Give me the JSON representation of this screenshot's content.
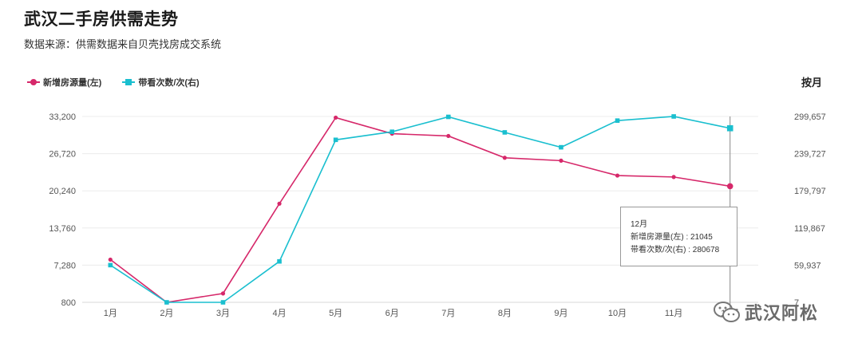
{
  "header": {
    "title": "武汉二手房供需走势",
    "subtitle": "数据来源：供需数据来自贝壳找房成交系统"
  },
  "period_label": "按月",
  "colors": {
    "series1": "#d6286a",
    "series2": "#1abfcf",
    "grid": "#ececec",
    "crosshair": "#888888"
  },
  "chart_data": {
    "type": "line",
    "categories": [
      "1月",
      "2月",
      "3月",
      "4月",
      "5月",
      "6月",
      "7月",
      "8月",
      "9月",
      "10月",
      "11月",
      "12月"
    ],
    "series": [
      {
        "name": "新增房源量(左)",
        "axis": "left",
        "marker": "circle",
        "values": [
          8250,
          800,
          2350,
          18000,
          33000,
          30200,
          29800,
          26000,
          25500,
          22900,
          22650,
          21045
        ]
      },
      {
        "name": "带看次数/次(右)",
        "axis": "right",
        "marker": "square",
        "values": [
          60000,
          7,
          7,
          66000,
          262000,
          275000,
          299000,
          274000,
          250000,
          293000,
          299700,
          280678
        ]
      }
    ],
    "y_left": {
      "ticks": [
        "800",
        "7,280",
        "13,760",
        "20,240",
        "26,720",
        "33,200"
      ],
      "min": 800,
      "max": 33200
    },
    "y_right": {
      "ticks": [
        "7",
        "59,937",
        "119,867",
        "179,797",
        "239,727",
        "299,657"
      ],
      "min": 7,
      "max": 299657
    },
    "grid": true,
    "legend_position": "top-left",
    "tooltip": {
      "title": "12月",
      "lines": [
        "新增房源量(左) : 21045",
        "带看次数/次(右) : 280678"
      ]
    }
  },
  "watermark": {
    "text": "武汉阿松",
    "icon": "wechat-icon"
  }
}
